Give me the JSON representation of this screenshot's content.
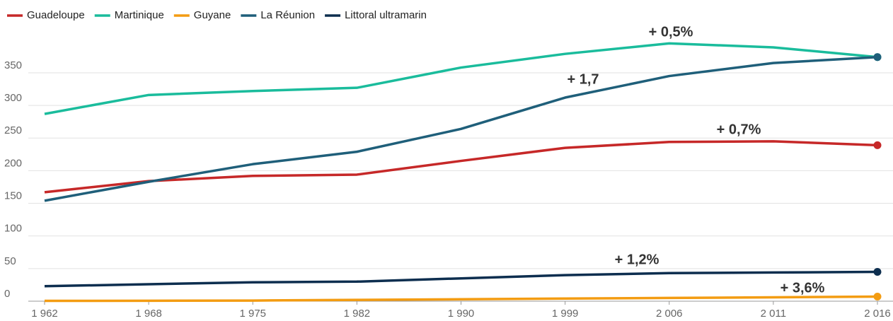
{
  "chart_data": {
    "type": "line",
    "categories": [
      "1 962",
      "1 968",
      "1 975",
      "1 982",
      "1 990",
      "1 999",
      "2 006",
      "2 011",
      "2 016"
    ],
    "series": [
      {
        "name": "Guadeloupe",
        "color": "#c62828",
        "values": [
          167,
          184,
          192,
          194,
          215,
          235,
          244,
          245,
          239
        ]
      },
      {
        "name": "Martinique",
        "color": "#1abc9c",
        "values": [
          287,
          316,
          322,
          327,
          358,
          379,
          395,
          389,
          374
        ]
      },
      {
        "name": "Guyane",
        "color": "#f39c12",
        "values": [
          0.5,
          0.7,
          1,
          2,
          3,
          4,
          5,
          6,
          7
        ]
      },
      {
        "name": "La Réunion",
        "color": "#1f5f7a",
        "values": [
          154,
          183,
          210,
          229,
          264,
          312,
          345,
          365,
          374
        ]
      },
      {
        "name": "Littoral ultramarin",
        "color": "#0d2e4f",
        "values": [
          23,
          26,
          29,
          30,
          35,
          40,
          43,
          44,
          45
        ]
      }
    ],
    "annotations": [
      "+ 0,5%",
      "+ 1,7",
      "+ 0,7%",
      "+ 1,2%",
      "+ 3,6%"
    ],
    "ylim": [
      0,
      400
    ],
    "yticks": [
      0,
      50,
      100,
      150,
      200,
      250,
      300,
      350
    ],
    "grid": true,
    "legend": "top-left"
  }
}
